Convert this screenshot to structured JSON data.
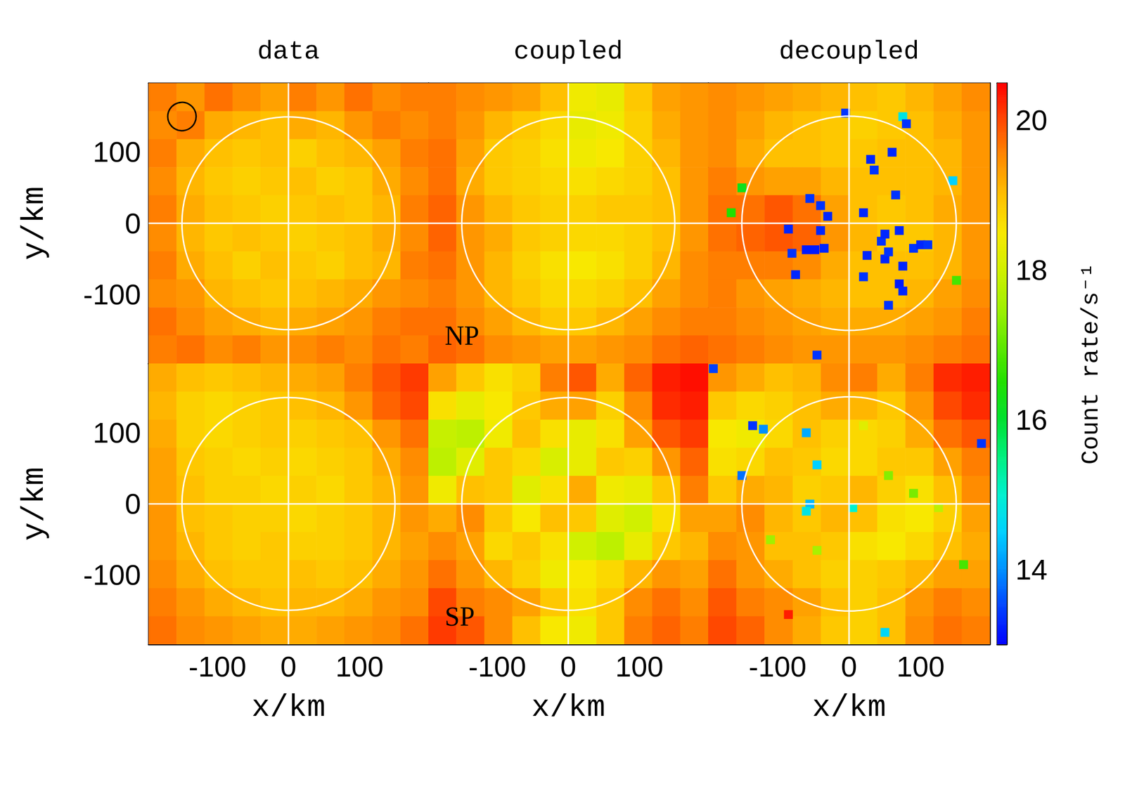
{
  "chart_data": {
    "type": "heatmap",
    "columns": [
      "data",
      "coupled",
      "decoupled"
    ],
    "xlabel": "x/km",
    "ylabel": "y/km",
    "xlim": [
      -197,
      197
    ],
    "ylim": [
      -197,
      197
    ],
    "xticks": [
      -100,
      0,
      100
    ],
    "yticks": [
      -100,
      0,
      100
    ],
    "grid": false,
    "colorbar": {
      "label": "Count rate/s⁻¹",
      "range": [
        13,
        20.5
      ],
      "ticks": [
        14,
        16,
        18,
        20
      ]
    },
    "circle": {
      "x": 0,
      "y": 0,
      "radius": 150
    },
    "panels": [
      {
        "psf_circle": {
          "x": -150,
          "y": 150,
          "radius": 20
        },
        "cells": [
          [
            19.6,
            19.4,
            19.7,
            19.5,
            19.3,
            19.6,
            19.4,
            19.7,
            19.5,
            19.6
          ],
          [
            19.5,
            19.6,
            19.2,
            19.1,
            19.0,
            19.2,
            19.1,
            19.4,
            19.6,
            19.5
          ],
          [
            19.6,
            19.2,
            19.0,
            18.9,
            19.0,
            18.8,
            19.0,
            19.1,
            19.3,
            19.6
          ],
          [
            19.5,
            19.1,
            18.9,
            18.8,
            18.9,
            19.0,
            18.8,
            18.9,
            19.2,
            19.5
          ],
          [
            19.6,
            19.2,
            19.0,
            18.9,
            18.8,
            18.9,
            19.0,
            18.9,
            19.1,
            19.6
          ],
          [
            19.5,
            19.1,
            18.9,
            19.0,
            18.9,
            18.8,
            18.9,
            19.0,
            19.2,
            19.5
          ],
          [
            19.6,
            19.2,
            19.0,
            18.8,
            19.0,
            18.9,
            18.8,
            19.0,
            19.1,
            19.6
          ],
          [
            19.5,
            19.4,
            19.1,
            19.0,
            18.9,
            19.0,
            19.1,
            19.2,
            19.4,
            19.5
          ],
          [
            19.7,
            19.5,
            19.3,
            19.2,
            19.1,
            19.2,
            19.3,
            19.4,
            19.6,
            19.7
          ],
          [
            19.6,
            19.7,
            19.5,
            19.6,
            19.4,
            19.5,
            19.6,
            19.5,
            19.7,
            19.6
          ]
        ]
      },
      {
        "label": "NP",
        "cells": [
          [
            19.6,
            19.5,
            19.4,
            19.3,
            19.0,
            18.4,
            18.3,
            18.9,
            19.3,
            19.4
          ],
          [
            19.6,
            19.4,
            19.1,
            18.9,
            18.7,
            18.3,
            18.4,
            18.8,
            19.2,
            19.4
          ],
          [
            19.7,
            19.3,
            18.9,
            18.8,
            18.6,
            18.4,
            18.5,
            18.8,
            19.1,
            19.4
          ],
          [
            19.7,
            19.2,
            18.9,
            18.8,
            18.7,
            18.6,
            18.7,
            18.8,
            19.0,
            19.4
          ],
          [
            19.8,
            19.4,
            19.1,
            18.9,
            18.8,
            18.8,
            18.9,
            18.9,
            19.0,
            19.4
          ],
          [
            19.8,
            19.4,
            19.2,
            18.9,
            18.8,
            18.7,
            18.7,
            18.8,
            19.0,
            19.4
          ],
          [
            19.7,
            19.4,
            19.1,
            18.8,
            18.6,
            18.5,
            18.6,
            18.8,
            19.1,
            19.5
          ],
          [
            19.6,
            19.4,
            19.1,
            18.9,
            18.7,
            18.7,
            18.8,
            19.0,
            19.3,
            19.5
          ],
          [
            19.7,
            19.5,
            19.3,
            19.1,
            18.9,
            18.9,
            19.1,
            19.3,
            19.5,
            19.6
          ],
          [
            19.8,
            19.7,
            19.5,
            19.4,
            19.3,
            19.3,
            19.4,
            19.5,
            19.7,
            19.8
          ]
        ]
      },
      {
        "cells": [
          [
            19.5,
            19.4,
            19.3,
            19.2,
            19.1,
            19.0,
            18.9,
            19.1,
            19.3,
            19.5
          ],
          [
            19.5,
            19.3,
            19.1,
            19.0,
            18.9,
            18.8,
            18.9,
            19.0,
            19.2,
            19.4
          ],
          [
            19.5,
            19.2,
            19.0,
            19.0,
            18.9,
            18.9,
            19.0,
            19.0,
            19.1,
            19.4
          ],
          [
            19.6,
            19.4,
            19.3,
            19.3,
            19.1,
            19.0,
            19.0,
            19.0,
            19.1,
            19.4
          ],
          [
            19.7,
            19.7,
            19.9,
            19.7,
            19.3,
            19.0,
            18.9,
            19.0,
            19.2,
            19.4
          ],
          [
            19.7,
            19.8,
            19.9,
            19.8,
            19.4,
            19.1,
            18.9,
            18.9,
            19.1,
            19.4
          ],
          [
            19.6,
            19.6,
            19.6,
            19.5,
            19.2,
            19.0,
            19.0,
            19.0,
            19.1,
            19.4
          ],
          [
            19.6,
            19.4,
            19.3,
            19.2,
            19.1,
            19.0,
            19.0,
            19.1,
            19.3,
            19.5
          ],
          [
            19.6,
            19.5,
            19.4,
            19.3,
            19.2,
            19.2,
            19.2,
            19.3,
            19.4,
            19.6
          ],
          [
            19.7,
            19.6,
            19.5,
            19.4,
            19.4,
            19.4,
            19.4,
            19.5,
            19.6,
            19.7
          ]
        ],
        "spots": [
          [
            -60,
            -37,
            13.2
          ],
          [
            -48,
            -37,
            13.2
          ],
          [
            -35,
            -35,
            13.3
          ],
          [
            -85,
            -8,
            13.3
          ],
          [
            -80,
            -42,
            13.4
          ],
          [
            -75,
            -72,
            13.3
          ],
          [
            -55,
            35,
            13.4
          ],
          [
            -40,
            -10,
            13.3
          ],
          [
            -30,
            10,
            13.3
          ],
          [
            -40,
            25,
            13.4
          ],
          [
            20,
            15,
            13.3
          ],
          [
            25,
            -45,
            13.3
          ],
          [
            30,
            90,
            13.3
          ],
          [
            35,
            75,
            13.4
          ],
          [
            45,
            -25,
            13.4
          ],
          [
            50,
            -50,
            13.3
          ],
          [
            55,
            -40,
            13.4
          ],
          [
            65,
            40,
            13.4
          ],
          [
            70,
            -10,
            13.3
          ],
          [
            75,
            -60,
            13.3
          ],
          [
            70,
            -85,
            13.2
          ],
          [
            60,
            100,
            13.3
          ],
          [
            75,
            150,
            14.8
          ],
          [
            80,
            140,
            13.4
          ],
          [
            75,
            -95,
            13.3
          ],
          [
            90,
            -35,
            13.4
          ],
          [
            100,
            -30,
            13.3
          ],
          [
            110,
            -30,
            13.4
          ],
          [
            20,
            -75,
            13.4
          ],
          [
            50,
            -15,
            13.3
          ],
          [
            145,
            60,
            14.5
          ],
          [
            -150,
            50,
            16.2
          ],
          [
            -165,
            15,
            16.5
          ],
          [
            150,
            -80,
            16.8
          ],
          [
            -5,
            155,
            13.4
          ],
          [
            -45,
            -185,
            13.4
          ],
          [
            55,
            -115,
            13.4
          ]
        ]
      },
      {
        "cells": [
          [
            19.2,
            19.0,
            18.9,
            19.0,
            19.1,
            19.2,
            19.3,
            19.6,
            19.9,
            20.1
          ],
          [
            19.1,
            18.8,
            18.7,
            18.8,
            18.9,
            19.0,
            19.1,
            19.4,
            19.8,
            20.0
          ],
          [
            19.2,
            18.8,
            18.7,
            18.8,
            18.9,
            18.8,
            18.9,
            19.0,
            19.4,
            19.7
          ],
          [
            19.3,
            18.9,
            18.8,
            18.7,
            18.8,
            18.7,
            18.8,
            18.9,
            19.2,
            19.5
          ],
          [
            19.3,
            19.0,
            18.8,
            18.8,
            18.7,
            18.8,
            18.7,
            18.9,
            19.1,
            19.4
          ],
          [
            19.4,
            19.0,
            18.9,
            18.8,
            18.8,
            18.7,
            18.8,
            18.9,
            19.1,
            19.4
          ],
          [
            19.4,
            19.1,
            18.9,
            18.8,
            18.9,
            18.8,
            18.8,
            18.9,
            19.1,
            19.3
          ],
          [
            19.5,
            19.2,
            19.0,
            18.9,
            18.9,
            19.0,
            18.9,
            19.0,
            19.2,
            19.4
          ],
          [
            19.6,
            19.4,
            19.2,
            19.1,
            19.0,
            19.1,
            19.1,
            19.2,
            19.4,
            19.5
          ],
          [
            19.7,
            19.5,
            19.4,
            19.3,
            19.2,
            19.2,
            19.3,
            19.4,
            19.5,
            19.7
          ]
        ]
      },
      {
        "label": "SP",
        "cells": [
          [
            19.3,
            18.9,
            18.6,
            18.8,
            19.6,
            19.9,
            19.2,
            19.8,
            20.3,
            20.4
          ],
          [
            18.6,
            18.3,
            18.5,
            18.9,
            19.2,
            19.3,
            18.8,
            19.5,
            20.2,
            20.3
          ],
          [
            17.9,
            17.8,
            18.4,
            19.0,
            18.6,
            18.3,
            18.6,
            19.3,
            19.9,
            20.1
          ],
          [
            17.8,
            18.2,
            18.9,
            18.7,
            18.1,
            18.3,
            18.9,
            18.8,
            19.4,
            19.8
          ],
          [
            18.4,
            19.0,
            18.9,
            18.2,
            18.6,
            19.2,
            18.4,
            18.3,
            18.9,
            19.6
          ],
          [
            19.2,
            19.5,
            18.9,
            18.5,
            19.0,
            18.9,
            18.2,
            18.0,
            18.6,
            19.3
          ],
          [
            19.5,
            19.3,
            18.7,
            18.9,
            18.6,
            18.0,
            17.8,
            18.3,
            18.9,
            19.1
          ],
          [
            19.7,
            19.4,
            19.1,
            18.8,
            18.4,
            18.5,
            18.7,
            19.1,
            19.4,
            19.3
          ],
          [
            20.0,
            19.6,
            19.5,
            19.3,
            18.9,
            18.6,
            18.9,
            19.5,
            19.7,
            19.5
          ],
          [
            20.1,
            19.9,
            19.5,
            19.0,
            18.5,
            18.4,
            18.9,
            19.6,
            19.8,
            19.6
          ]
        ]
      },
      {
        "cells": [
          [
            19.4,
            19.2,
            19.0,
            19.1,
            19.5,
            19.6,
            19.2,
            19.6,
            20.2,
            20.3
          ],
          [
            18.9,
            18.7,
            18.8,
            19.0,
            19.2,
            19.1,
            18.9,
            19.4,
            20.0,
            20.2
          ],
          [
            18.5,
            18.4,
            18.7,
            19.0,
            18.8,
            18.7,
            18.8,
            19.2,
            19.7,
            19.9
          ],
          [
            18.6,
            18.7,
            19.0,
            18.9,
            18.7,
            18.7,
            18.9,
            18.9,
            19.3,
            19.6
          ],
          [
            18.9,
            19.2,
            19.1,
            18.8,
            18.9,
            19.1,
            18.8,
            18.6,
            19.0,
            19.5
          ],
          [
            19.3,
            19.5,
            19.1,
            18.9,
            19.1,
            19.0,
            18.6,
            18.5,
            18.8,
            19.3
          ],
          [
            19.5,
            19.4,
            19.0,
            19.0,
            18.9,
            18.6,
            18.5,
            18.7,
            19.0,
            19.2
          ],
          [
            19.7,
            19.4,
            19.2,
            19.0,
            18.8,
            18.8,
            18.9,
            19.1,
            19.3,
            19.3
          ],
          [
            19.9,
            19.6,
            19.5,
            19.3,
            19.0,
            18.8,
            19.0,
            19.4,
            19.6,
            19.5
          ],
          [
            20.0,
            19.8,
            19.5,
            19.2,
            18.9,
            18.8,
            19.0,
            19.5,
            19.7,
            19.6
          ]
        ],
        "spots": [
          [
            -135,
            110,
            13.4
          ],
          [
            -120,
            105,
            14.0
          ],
          [
            -190,
            190,
            13.5
          ],
          [
            -60,
            100,
            14.2
          ],
          [
            -45,
            55,
            14.5
          ],
          [
            -55,
            0,
            14.3
          ],
          [
            -60,
            -10,
            14.8
          ],
          [
            5,
            -5,
            15.0
          ],
          [
            55,
            40,
            17.3
          ],
          [
            90,
            15,
            17.2
          ],
          [
            160,
            -85,
            16.8
          ],
          [
            -110,
            -50,
            17.5
          ],
          [
            -45,
            -65,
            17.6
          ],
          [
            50,
            -180,
            14.6
          ],
          [
            185,
            85,
            13.4
          ],
          [
            -85,
            -155,
            20.3
          ],
          [
            20,
            110,
            18.2
          ],
          [
            -150,
            40,
            13.8
          ],
          [
            125,
            -5,
            17.8
          ]
        ]
      }
    ]
  }
}
